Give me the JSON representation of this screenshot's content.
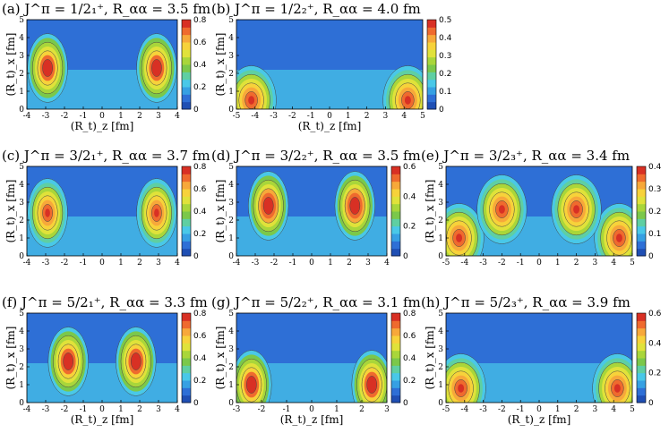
{
  "figure": {
    "colors": [
      "#1f4fb4",
      "#2e6fd6",
      "#36a0e3",
      "#49c8e8",
      "#5fcfa2",
      "#7bc84a",
      "#a9d63a",
      "#e0e23a",
      "#f7d23a",
      "#f7a83a",
      "#ef6a2e",
      "#d83024"
    ]
  },
  "chart_data": [
    {
      "type": "heatmap",
      "title": "(a) J^π = 1/2₁⁺,    R_αα = 3.5 fm",
      "xlabel": "(R_t)_z [fm]",
      "ylabel": "(R_t)_x [fm]",
      "xlim": [
        -4,
        4
      ],
      "ylim": [
        0,
        5
      ],
      "x_ticks": [
        "-4",
        "-3",
        "-2",
        "-1",
        "0",
        "1",
        "2",
        "3",
        "4"
      ],
      "y_ticks": [
        "0",
        "1",
        "2",
        "3",
        "4",
        "5"
      ],
      "colorbar": {
        "range": [
          0,
          0.8
        ],
        "ticks": [
          "0",
          "0.2",
          "0.4",
          "0.6",
          "0.8"
        ]
      },
      "peaks": [
        {
          "z": -2.9,
          "x": 2.3,
          "value": 0.85
        },
        {
          "z": 2.9,
          "x": 2.3,
          "value": 0.85
        }
      ]
    },
    {
      "type": "heatmap",
      "title": "(b) J^π = 1/2₂⁺,    R_αα = 4.0 fm",
      "xlabel": "(R_t)_z [fm]",
      "ylabel": "(R_t)_x [fm]",
      "xlim": [
        -5,
        5
      ],
      "ylim": [
        0,
        5
      ],
      "x_ticks": [
        "-5",
        "-4",
        "-3",
        "-2",
        "-1",
        "0",
        "1",
        "2",
        "3",
        "4",
        "5"
      ],
      "y_ticks": [
        "0",
        "1",
        "2",
        "3",
        "4",
        "5"
      ],
      "colorbar": {
        "range": [
          0,
          0.5
        ],
        "ticks": [
          "0",
          "0.1",
          "0.2",
          "0.3",
          "0.4",
          "0.5"
        ]
      },
      "peaks": [
        {
          "z": -4.2,
          "x": 0.5,
          "value": 0.5
        },
        {
          "z": 4.2,
          "x": 0.5,
          "value": 0.5
        }
      ]
    },
    {
      "type": "heatmap",
      "title": "(c) J^π = 3/2₁⁺,    R_αα = 3.7 fm",
      "xlabel": "",
      "ylabel": "(R_t)_x [fm]",
      "xlim": [
        -4,
        4
      ],
      "ylim": [
        0,
        5
      ],
      "x_ticks": [
        "-4",
        "-3",
        "-2",
        "-1",
        "0",
        "1",
        "2",
        "3",
        "4"
      ],
      "y_ticks": [
        "0",
        "1",
        "2",
        "3",
        "4",
        "5"
      ],
      "colorbar": {
        "range": [
          0,
          0.8
        ],
        "ticks": [
          "0",
          "0.2",
          "0.4",
          "0.6",
          "0.8"
        ]
      },
      "peaks": [
        {
          "z": -2.9,
          "x": 2.4,
          "value": 0.8
        },
        {
          "z": 2.9,
          "x": 2.4,
          "value": 0.8
        }
      ]
    },
    {
      "type": "heatmap",
      "title": "(d) J^π = 3/2₂⁺,    R_αα = 3.5 fm",
      "xlabel": "",
      "ylabel": "(R_t)_x [fm]",
      "xlim": [
        -4,
        4
      ],
      "ylim": [
        0,
        5
      ],
      "x_ticks": [
        "-4",
        "-3",
        "-2",
        "-1",
        "0",
        "1",
        "2",
        "3",
        "4"
      ],
      "y_ticks": [
        "0",
        "1",
        "2",
        "3",
        "4",
        "5"
      ],
      "colorbar": {
        "range": [
          0,
          0.6
        ],
        "ticks": [
          "0",
          "0.2",
          "0.4",
          "0.6"
        ]
      },
      "peaks": [
        {
          "z": -2.3,
          "x": 2.8,
          "value": 0.65
        },
        {
          "z": 2.3,
          "x": 2.8,
          "value": 0.65
        }
      ]
    },
    {
      "type": "heatmap",
      "title": "(e) J^π = 3/2₃⁺,    R_αα = 3.4 fm",
      "xlabel": "",
      "ylabel": "(R_t)_x [fm]",
      "xlim": [
        -5,
        5
      ],
      "ylim": [
        0,
        5
      ],
      "x_ticks": [
        "-5",
        "-4",
        "-3",
        "-2",
        "-1",
        "0",
        "1",
        "2",
        "3",
        "4",
        "5"
      ],
      "y_ticks": [
        "0",
        "1",
        "2",
        "3",
        "4",
        "5"
      ],
      "colorbar": {
        "range": [
          0,
          0.4
        ],
        "ticks": [
          "0",
          "0.1",
          "0.2",
          "0.3",
          "0.4"
        ]
      },
      "peaks": [
        {
          "z": -4.3,
          "x": 1.0,
          "value": 0.4
        },
        {
          "z": 4.3,
          "x": 1.0,
          "value": 0.4
        },
        {
          "z": -2.0,
          "x": 2.6,
          "value": 0.4
        },
        {
          "z": 2.0,
          "x": 2.6,
          "value": 0.4
        }
      ]
    },
    {
      "type": "heatmap",
      "title": "(f) J^π = 5/2₁⁺,    R_αα = 3.3 fm",
      "xlabel": "(R_t)_z [fm]",
      "ylabel": "(R_t)_x [fm]",
      "xlim": [
        -4,
        4
      ],
      "ylim": [
        0,
        5
      ],
      "x_ticks": [
        "-4",
        "-3",
        "-2",
        "-1",
        "0",
        "1",
        "2",
        "3",
        "4"
      ],
      "y_ticks": [
        "0",
        "1",
        "2",
        "3",
        "4",
        "5"
      ],
      "colorbar": {
        "range": [
          0,
          0.8
        ],
        "ticks": [
          "0",
          "0.2",
          "0.4",
          "0.6",
          "0.8"
        ]
      },
      "peaks": [
        {
          "z": -1.8,
          "x": 2.3,
          "value": 0.85
        },
        {
          "z": 1.8,
          "x": 2.3,
          "value": 0.85
        }
      ]
    },
    {
      "type": "heatmap",
      "title": "(g) J^π = 5/2₂⁺,    R_αα = 3.1 fm",
      "xlabel": "(R_t)_z [fm]",
      "ylabel": "(R_t)_x [fm]",
      "xlim": [
        -3,
        3
      ],
      "ylim": [
        0,
        5
      ],
      "x_ticks": [
        "-3",
        "-2",
        "-1",
        "0",
        "1",
        "2",
        "3"
      ],
      "y_ticks": [
        "0",
        "1",
        "2",
        "3",
        "4",
        "5"
      ],
      "colorbar": {
        "range": [
          0,
          0.8
        ],
        "ticks": [
          "0",
          "0.2",
          "0.4",
          "0.6",
          "0.8"
        ]
      },
      "peaks": [
        {
          "z": -2.4,
          "x": 1.0,
          "value": 0.85
        },
        {
          "z": 2.4,
          "x": 1.0,
          "value": 0.85
        }
      ]
    },
    {
      "type": "heatmap",
      "title": "(h) J^π = 5/2₃⁺,    R_αα = 3.9 fm",
      "xlabel": "(R_t)_z [fm]",
      "ylabel": "(R_t)_x [fm]",
      "xlim": [
        -5,
        5
      ],
      "ylim": [
        0,
        5
      ],
      "x_ticks": [
        "-5",
        "-4",
        "-3",
        "-2",
        "-1",
        "0",
        "1",
        "2",
        "3",
        "4",
        "5"
      ],
      "y_ticks": [
        "0",
        "1",
        "2",
        "3",
        "4",
        "5"
      ],
      "colorbar": {
        "range": [
          0,
          0.6
        ],
        "ticks": [
          "0",
          "0.2",
          "0.4",
          "0.6"
        ]
      },
      "peaks": [
        {
          "z": -4.2,
          "x": 0.8,
          "value": 0.6
        },
        {
          "z": 4.2,
          "x": 0.8,
          "value": 0.6
        }
      ]
    }
  ]
}
